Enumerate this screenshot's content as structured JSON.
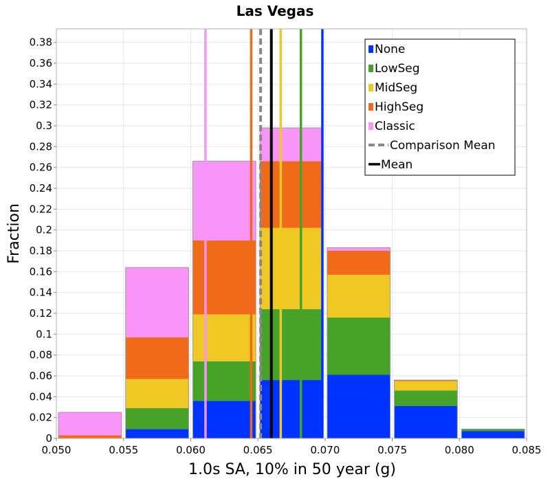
{
  "chart_data": {
    "type": "bar",
    "title": "Las Vegas",
    "xlabel": "1.0s SA, 10% in 50 year (g)",
    "ylabel": "Fraction",
    "xlim": [
      0.05,
      0.085
    ],
    "ylim": [
      0,
      0.393
    ],
    "xticks": [
      "0.050",
      "0.055",
      "0.060",
      "0.065",
      "0.070",
      "0.075",
      "0.080",
      "0.085"
    ],
    "yticks": [
      "0",
      "0.02",
      "0.04",
      "0.06",
      "0.08",
      "0.1",
      "0.12",
      "0.14",
      "0.16",
      "0.18",
      "0.2",
      "0.22",
      "0.24",
      "0.26",
      "0.28",
      "0.3",
      "0.32",
      "0.34",
      "0.36",
      "0.38"
    ],
    "grid": true,
    "stacked": true,
    "legend_position": "top-right",
    "bins": [
      [
        0.05,
        0.055
      ],
      [
        0.055,
        0.06
      ],
      [
        0.06,
        0.065
      ],
      [
        0.065,
        0.07
      ],
      [
        0.07,
        0.075
      ],
      [
        0.075,
        0.08
      ],
      [
        0.08,
        0.085
      ]
    ],
    "series": [
      {
        "name": "None",
        "color": "#0033ff",
        "values": [
          0.0,
          0.009,
          0.036,
          0.056,
          0.061,
          0.031,
          0.007
        ]
      },
      {
        "name": "LowSeg",
        "color": "#46a328",
        "values": [
          0.0,
          0.02,
          0.038,
          0.068,
          0.055,
          0.015,
          0.002
        ]
      },
      {
        "name": "MidSeg",
        "color": "#f0c823",
        "values": [
          0.0,
          0.028,
          0.045,
          0.078,
          0.041,
          0.009,
          0.0
        ]
      },
      {
        "name": "HighSeg",
        "color": "#f06a19",
        "values": [
          0.003,
          0.04,
          0.071,
          0.064,
          0.023,
          0.001,
          0.0
        ]
      },
      {
        "name": "Classic",
        "color": "#f995f9",
        "values": [
          0.022,
          0.067,
          0.076,
          0.032,
          0.003,
          0.0,
          0.0
        ]
      }
    ],
    "mean_lines": [
      {
        "series": "None",
        "color": "#0033ff",
        "x": 0.0698
      },
      {
        "series": "LowSeg",
        "color": "#46a328",
        "x": 0.0682
      },
      {
        "series": "MidSeg",
        "color": "#f0c823",
        "x": 0.0667
      },
      {
        "series": "HighSeg",
        "color": "#f06a19",
        "x": 0.0645
      },
      {
        "series": "Classic",
        "color": "#f995f9",
        "x": 0.0611
      },
      {
        "series": "Comparison Mean",
        "color": "#888888",
        "x": 0.0652,
        "style": "dashed"
      },
      {
        "series": "Mean",
        "color": "#000000",
        "x": 0.066
      }
    ],
    "legend": [
      {
        "label": "None",
        "color": "#0033ff",
        "kind": "box"
      },
      {
        "label": "LowSeg",
        "color": "#46a328",
        "kind": "box"
      },
      {
        "label": "MidSeg",
        "color": "#f0c823",
        "kind": "box"
      },
      {
        "label": "HighSeg",
        "color": "#f06a19",
        "kind": "box"
      },
      {
        "label": "Classic",
        "color": "#f995f9",
        "kind": "box"
      },
      {
        "label": "Comparison Mean",
        "color": "#888888",
        "kind": "dashed"
      },
      {
        "label": "Mean",
        "color": "#000000",
        "kind": "line"
      }
    ]
  }
}
